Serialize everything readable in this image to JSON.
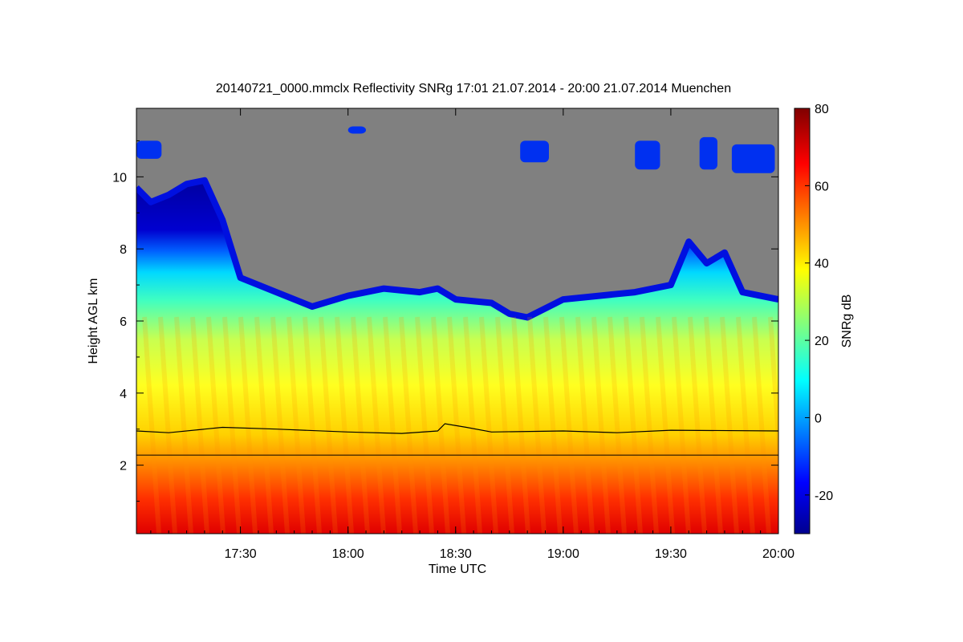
{
  "chart_data": {
    "type": "heatmap",
    "title": "20140721_0000.mmclx Reflectivity SNRg   17:01 21.07.2014 - 20:00 21.07.2014 Muenchen",
    "xlabel": "Time UTC",
    "ylabel": "Height AGL km",
    "colorbar_label": "SNRg dB",
    "x_range": [
      "17:01",
      "20:00"
    ],
    "y_range_km": [
      0.1,
      11.9
    ],
    "x_ticks": [
      "17:30",
      "18:00",
      "18:30",
      "19:00",
      "19:30",
      "20:00"
    ],
    "y_ticks": [
      "2",
      "4",
      "6",
      "8",
      "10"
    ],
    "colorbar_range_db": [
      -30,
      80
    ],
    "colorbar_ticks": [
      "-20",
      "0",
      "20",
      "40",
      "60",
      "80"
    ],
    "no_signal_color": "#808080",
    "colormap": [
      "#00008f",
      "#0000ff",
      "#00ffff",
      "#ffff00",
      "#ff0000",
      "#800000"
    ],
    "echo_top_km": [
      {
        "t": "17:01",
        "h": 9.7
      },
      {
        "t": "17:05",
        "h": 9.3
      },
      {
        "t": "17:10",
        "h": 9.5
      },
      {
        "t": "17:15",
        "h": 9.8
      },
      {
        "t": "17:20",
        "h": 9.9
      },
      {
        "t": "17:25",
        "h": 8.8
      },
      {
        "t": "17:30",
        "h": 7.2
      },
      {
        "t": "17:40",
        "h": 6.8
      },
      {
        "t": "17:50",
        "h": 6.4
      },
      {
        "t": "18:00",
        "h": 6.7
      },
      {
        "t": "18:10",
        "h": 6.9
      },
      {
        "t": "18:20",
        "h": 6.8
      },
      {
        "t": "18:25",
        "h": 6.9
      },
      {
        "t": "18:30",
        "h": 6.6
      },
      {
        "t": "18:40",
        "h": 6.5
      },
      {
        "t": "18:45",
        "h": 6.2
      },
      {
        "t": "18:50",
        "h": 6.1
      },
      {
        "t": "19:00",
        "h": 6.6
      },
      {
        "t": "19:10",
        "h": 6.7
      },
      {
        "t": "19:20",
        "h": 6.8
      },
      {
        "t": "19:30",
        "h": 7.0
      },
      {
        "t": "19:35",
        "h": 8.2
      },
      {
        "t": "19:40",
        "h": 7.6
      },
      {
        "t": "19:45",
        "h": 7.9
      },
      {
        "t": "19:50",
        "h": 6.8
      },
      {
        "t": "20:00",
        "h": 6.6
      }
    ],
    "melting_layer_km": [
      {
        "t": "17:01",
        "h": 2.95
      },
      {
        "t": "17:10",
        "h": 2.9
      },
      {
        "t": "17:25",
        "h": 3.05
      },
      {
        "t": "17:40",
        "h": 3.0
      },
      {
        "t": "18:00",
        "h": 2.92
      },
      {
        "t": "18:15",
        "h": 2.88
      },
      {
        "t": "18:25",
        "h": 2.95
      },
      {
        "t": "18:27",
        "h": 3.15
      },
      {
        "t": "18:33",
        "h": 3.05
      },
      {
        "t": "18:40",
        "h": 2.92
      },
      {
        "t": "19:00",
        "h": 2.95
      },
      {
        "t": "19:15",
        "h": 2.9
      },
      {
        "t": "19:30",
        "h": 2.97
      },
      {
        "t": "20:00",
        "h": 2.95
      }
    ],
    "reference_line_km": 2.28,
    "upper_cloud_patches": [
      {
        "t0": "17:01",
        "t1": "17:08",
        "h0": 10.5,
        "h1": 11.0
      },
      {
        "t0": "18:00",
        "t1": "18:05",
        "h0": 11.2,
        "h1": 11.4
      },
      {
        "t0": "18:48",
        "t1": "18:56",
        "h0": 10.4,
        "h1": 11.0
      },
      {
        "t0": "19:20",
        "t1": "19:27",
        "h0": 10.2,
        "h1": 11.0
      },
      {
        "t0": "19:38",
        "t1": "19:43",
        "h0": 10.2,
        "h1": 11.1
      },
      {
        "t0": "19:47",
        "t1": "19:59",
        "h0": 10.1,
        "h1": 10.9
      }
    ]
  }
}
